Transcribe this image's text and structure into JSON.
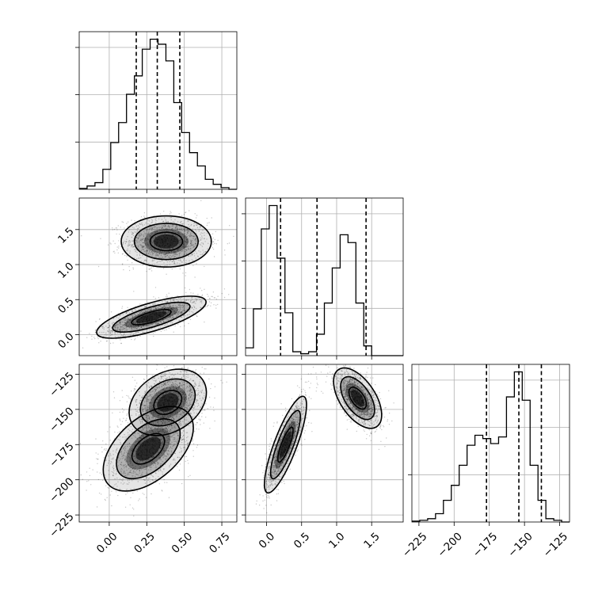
{
  "chart_data": {
    "type": "corner",
    "grid": true,
    "colors": {
      "line": "#000000",
      "grid": "#b0b0b0",
      "density": "#000000"
    },
    "parameters": [
      {
        "range": [
          -0.2,
          0.85
        ],
        "ticks": [
          0.0,
          0.25,
          0.5,
          0.75
        ],
        "tick_labels": [
          "0.00",
          "0.25",
          "0.50",
          "0.75"
        ],
        "quantiles": [
          0.18,
          0.32,
          0.47
        ]
      },
      {
        "range": [
          -0.3,
          1.95
        ],
        "ticks": [
          0.0,
          0.5,
          1.0,
          1.5
        ],
        "tick_labels": [
          "0.0",
          "0.5",
          "1.0",
          "1.5"
        ],
        "quantiles": [
          0.2,
          0.72,
          1.42
        ]
      },
      {
        "range": [
          -230,
          -118
        ],
        "ticks": [
          -225,
          -200,
          -175,
          -150,
          -125
        ],
        "tick_labels": [
          "−225",
          "−200",
          "−175",
          "−150",
          "−125"
        ],
        "quantiles": [
          -177,
          -154,
          -138
        ]
      }
    ],
    "histograms": [
      {
        "edges_from": -0.2,
        "bin_width": 0.0525,
        "counts": [
          0.5,
          2,
          4,
          12,
          28,
          40,
          57,
          68,
          84,
          90,
          87,
          77,
          52,
          34,
          22,
          14,
          6,
          3,
          1,
          0
        ]
      },
      {
        "edges_from": -0.3,
        "bin_width": 0.1125,
        "counts": [
          4,
          24,
          65,
          77,
          50,
          22,
          2,
          1,
          2,
          11,
          27,
          45,
          62,
          58,
          27,
          5,
          0,
          0,
          0,
          0
        ]
      },
      {
        "edges_from": -230,
        "bin_width": 5.6,
        "counts": [
          0.5,
          1,
          2,
          5,
          13,
          22,
          34,
          46,
          52,
          50,
          47,
          51,
          75,
          90,
          73,
          34,
          13,
          2,
          1,
          0
        ]
      }
    ],
    "pairs": [
      {
        "row": 1,
        "col": 0,
        "clusters": [
          {
            "cx": 0.38,
            "cy": 1.33,
            "sx": 0.14,
            "sy": 0.17,
            "rho": 0.0,
            "n": 1400
          },
          {
            "cx": 0.28,
            "cy": 0.25,
            "sx": 0.17,
            "sy": 0.14,
            "rho": 0.72,
            "n": 1400
          }
        ]
      },
      {
        "row": 2,
        "col": 0,
        "clusters": [
          {
            "cx": 0.39,
            "cy": -145,
            "sx": 0.12,
            "sy": 11,
            "rho": 0.3,
            "n": 1500
          },
          {
            "cx": 0.26,
            "cy": -178,
            "sx": 0.14,
            "sy": 14,
            "rho": 0.5,
            "n": 1300
          }
        ]
      },
      {
        "row": 2,
        "col": 1,
        "clusters": [
          {
            "cx": 0.27,
            "cy": -175,
            "sx": 0.14,
            "sy": 16,
            "rho": 0.82,
            "n": 1300
          },
          {
            "cx": 1.3,
            "cy": -142,
            "sx": 0.16,
            "sy": 10,
            "rho": -0.55,
            "n": 1300
          }
        ]
      }
    ]
  }
}
